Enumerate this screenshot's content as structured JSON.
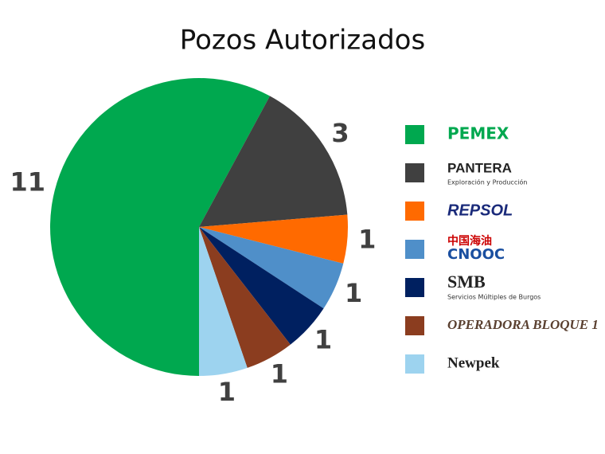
{
  "chart_data": {
    "type": "pie",
    "title": "Pozos Autorizados",
    "categories": [
      "PEMEX",
      "PANTERA",
      "REPSOL",
      "CNOOC",
      "SMB",
      "OPERADORA BLOQUE 1",
      "Newpek"
    ],
    "category_subtexts": [
      null,
      "Exploración y Producción",
      null,
      "中国海油",
      "Servicios Múltiples de Burgos",
      null,
      null
    ],
    "values": [
      11,
      3,
      1,
      1,
      1,
      1,
      1
    ],
    "colors": [
      "#00a84f",
      "#404040",
      "#ff6a00",
      "#4f8fc9",
      "#002060",
      "#8b3d1f",
      "#9dd3ef"
    ],
    "legend": "right"
  }
}
